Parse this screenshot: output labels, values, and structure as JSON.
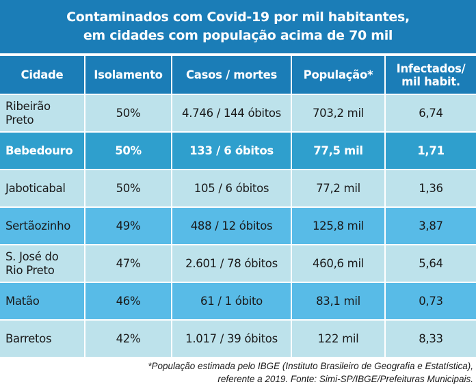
{
  "title": {
    "line1": "Contaminados com Covid-19 por mil habitantes,",
    "line2": "em cidades com população acima de 70 mil"
  },
  "headers": [
    "Cidade",
    "Isolamento",
    "Casos / mortes",
    "População*",
    "Infectados/ mil habit."
  ],
  "rows": [
    {
      "cidade": "Ribeirão Preto",
      "isolamento": "50%",
      "casos": "4.746 / 144 óbitos",
      "populacao": "703,2 mil",
      "infectados": "6,74",
      "style": "light"
    },
    {
      "cidade": "Bebedouro",
      "isolamento": "50%",
      "casos": "133 / 6 óbitos",
      "populacao": "77,5 mil",
      "infectados": "1,71",
      "style": "highlight"
    },
    {
      "cidade": "Jaboticabal",
      "isolamento": "50%",
      "casos": "105 / 6 óbitos",
      "populacao": "77,2 mil",
      "infectados": "1,36",
      "style": "light"
    },
    {
      "cidade": "Sertãozinho",
      "isolamento": "49%",
      "casos": "488 / 12 óbitos",
      "populacao": "125,8 mil",
      "infectados": "3,87",
      "style": "blue"
    },
    {
      "cidade": "S. José do Rio Preto",
      "isolamento": "47%",
      "casos": "2.601 / 78 óbitos",
      "populacao": "460,6 mil",
      "infectados": "5,64",
      "style": "light"
    },
    {
      "cidade": "Matão",
      "isolamento": "46%",
      "casos": "61 / 1 óbito",
      "populacao": "83,1 mil",
      "infectados": "0,73",
      "style": "blue"
    },
    {
      "cidade": "Barretos",
      "isolamento": "42%",
      "casos": "1.017 / 39 óbitos",
      "populacao": "122 mil",
      "infectados": "8,33",
      "style": "light"
    }
  ],
  "footnote": {
    "line1": "*População estimada pelo IBGE (Instituto Brasileiro de Geografia e Estatística),",
    "line2": "referente a 2019. Fonte: Simi-SP/IBGE/Prefeituras Municipais."
  },
  "colors": {
    "header": "#1b7db7",
    "row_light": "#bde2eb",
    "row_blue": "#58bbe7",
    "row_highlight": "#2f9fcd"
  }
}
